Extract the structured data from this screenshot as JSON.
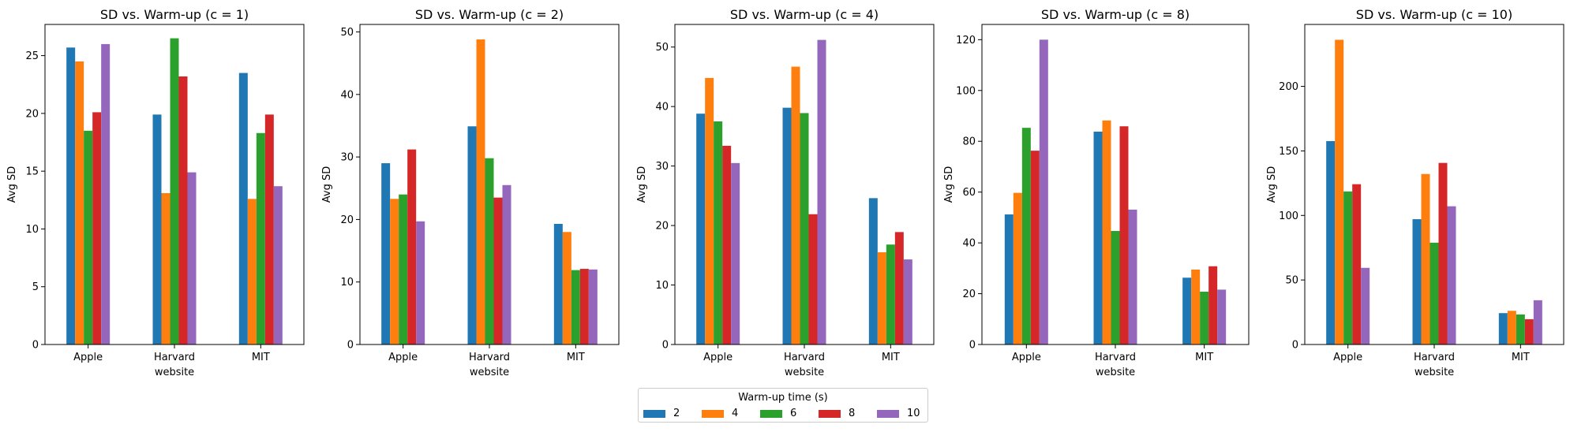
{
  "legend": {
    "title": "Warm-up time (s)",
    "entries": [
      {
        "label": "2",
        "color": "#1f77b4"
      },
      {
        "label": "4",
        "color": "#ff7f0e"
      },
      {
        "label": "6",
        "color": "#2ca02c"
      },
      {
        "label": "8",
        "color": "#d62728"
      },
      {
        "label": "10",
        "color": "#9467bd"
      }
    ]
  },
  "chart_data": [
    {
      "type": "bar",
      "title": "SD vs. Warm-up (c = 1)",
      "xlabel": "website",
      "ylabel": "Avg SD",
      "categories": [
        "Apple",
        "Harvard",
        "MIT"
      ],
      "ylim": [
        0,
        27.7
      ],
      "yticks": [
        0,
        5,
        10,
        15,
        20,
        25
      ],
      "series": [
        {
          "name": "2",
          "values": [
            25.7,
            19.9,
            23.5
          ]
        },
        {
          "name": "4",
          "values": [
            24.5,
            13.1,
            12.6
          ]
        },
        {
          "name": "6",
          "values": [
            18.5,
            26.5,
            18.3
          ]
        },
        {
          "name": "8",
          "values": [
            20.1,
            23.2,
            19.9
          ]
        },
        {
          "name": "10",
          "values": [
            26.0,
            14.9,
            13.7
          ]
        }
      ]
    },
    {
      "type": "bar",
      "title": "SD vs. Warm-up (c = 2)",
      "xlabel": "website",
      "ylabel": "Avg SD",
      "categories": [
        "Apple",
        "Harvard",
        "MIT"
      ],
      "ylim": [
        0,
        51.2
      ],
      "yticks": [
        0,
        10,
        20,
        30,
        40,
        50
      ],
      "series": [
        {
          "name": "2",
          "values": [
            29.0,
            34.9,
            19.3
          ]
        },
        {
          "name": "4",
          "values": [
            23.3,
            48.8,
            18.0
          ]
        },
        {
          "name": "6",
          "values": [
            24.0,
            29.8,
            11.9
          ]
        },
        {
          "name": "8",
          "values": [
            31.2,
            23.5,
            12.1
          ]
        },
        {
          "name": "10",
          "values": [
            19.7,
            25.5,
            12.0
          ]
        }
      ]
    },
    {
      "type": "bar",
      "title": "SD vs. Warm-up (c = 4)",
      "xlabel": "website",
      "ylabel": "Avg SD",
      "categories": [
        "Apple",
        "Harvard",
        "MIT"
      ],
      "ylim": [
        0,
        53.8
      ],
      "yticks": [
        0,
        10,
        20,
        30,
        40,
        50
      ],
      "series": [
        {
          "name": "2",
          "values": [
            38.8,
            39.8,
            24.6
          ]
        },
        {
          "name": "4",
          "values": [
            44.8,
            46.7,
            15.5
          ]
        },
        {
          "name": "6",
          "values": [
            37.5,
            38.9,
            16.8
          ]
        },
        {
          "name": "8",
          "values": [
            33.4,
            21.9,
            18.9
          ]
        },
        {
          "name": "10",
          "values": [
            30.5,
            51.2,
            14.3
          ]
        }
      ]
    },
    {
      "type": "bar",
      "title": "SD vs. Warm-up (c = 8)",
      "xlabel": "website",
      "ylabel": "Avg SD",
      "categories": [
        "Apple",
        "Harvard",
        "MIT"
      ],
      "ylim": [
        0,
        126
      ],
      "yticks": [
        0,
        20,
        40,
        60,
        80,
        100,
        120
      ],
      "series": [
        {
          "name": "2",
          "values": [
            51.2,
            83.8,
            26.3
          ]
        },
        {
          "name": "4",
          "values": [
            59.7,
            88.2,
            29.5
          ]
        },
        {
          "name": "6",
          "values": [
            85.3,
            44.7,
            20.8
          ]
        },
        {
          "name": "8",
          "values": [
            76.3,
            85.9,
            30.8
          ]
        },
        {
          "name": "10",
          "values": [
            120.0,
            53.1,
            21.6
          ]
        }
      ]
    },
    {
      "type": "bar",
      "title": "SD vs. Warm-up (c = 10)",
      "xlabel": "website",
      "ylabel": "Avg SD",
      "categories": [
        "Apple",
        "Harvard",
        "MIT"
      ],
      "ylim": [
        0,
        248
      ],
      "yticks": [
        0,
        50,
        100,
        150,
        200
      ],
      "series": [
        {
          "name": "2",
          "values": [
            157.6,
            97.1,
            24.3
          ]
        },
        {
          "name": "4",
          "values": [
            236.1,
            132.1,
            26.1
          ]
        },
        {
          "name": "6",
          "values": [
            118.6,
            78.9,
            23.3
          ]
        },
        {
          "name": "8",
          "values": [
            124.2,
            140.7,
            19.6
          ]
        },
        {
          "name": "10",
          "values": [
            59.4,
            107.1,
            34.3
          ]
        }
      ]
    }
  ]
}
